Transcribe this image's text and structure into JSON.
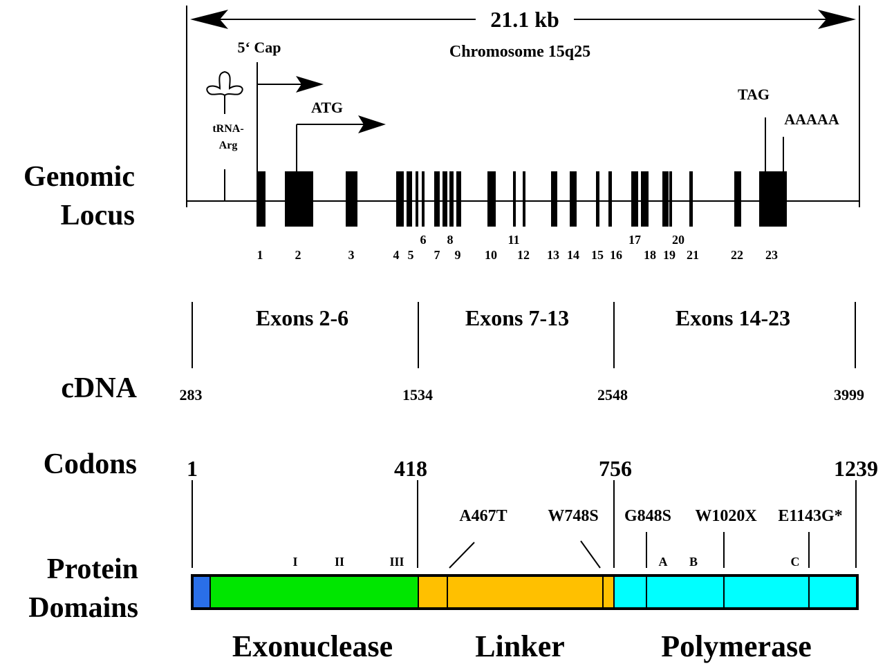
{
  "header": {
    "span": "21.1 kb",
    "chromosome": "Chromosome 15q25"
  },
  "row_labels": {
    "genomic": [
      "Genomic",
      "Locus"
    ],
    "cdna": "cDNA",
    "codons": "Codons",
    "protein": [
      "Protein",
      "Domains"
    ]
  },
  "locus": {
    "cap": "5‘ Cap",
    "atg": "ATG",
    "trna": [
      "tRNA-",
      "Arg"
    ],
    "tag": "TAG",
    "polya": "AAAAA"
  },
  "exons": [
    "1",
    "2",
    "3",
    "4",
    "5",
    "6",
    "7",
    "8",
    "9",
    "10",
    "11",
    "12",
    "13",
    "14",
    "15",
    "16",
    "17",
    "18",
    "19",
    "20",
    "21",
    "22",
    "23"
  ],
  "exon_groups": [
    "Exons 2-6",
    "Exons 7-13",
    "Exons 14-23"
  ],
  "cdna_positions": [
    283,
    1534,
    2548,
    3999
  ],
  "codons": [
    1,
    418,
    756,
    1239
  ],
  "mutations": [
    "A467T",
    "W748S",
    "G848S",
    "W1020X",
    "E1143G*"
  ],
  "motifs": [
    "I",
    "II",
    "III",
    "A",
    "B",
    "C"
  ],
  "domains": [
    "Exonuclease",
    "Linker",
    "Polymerase"
  ]
}
